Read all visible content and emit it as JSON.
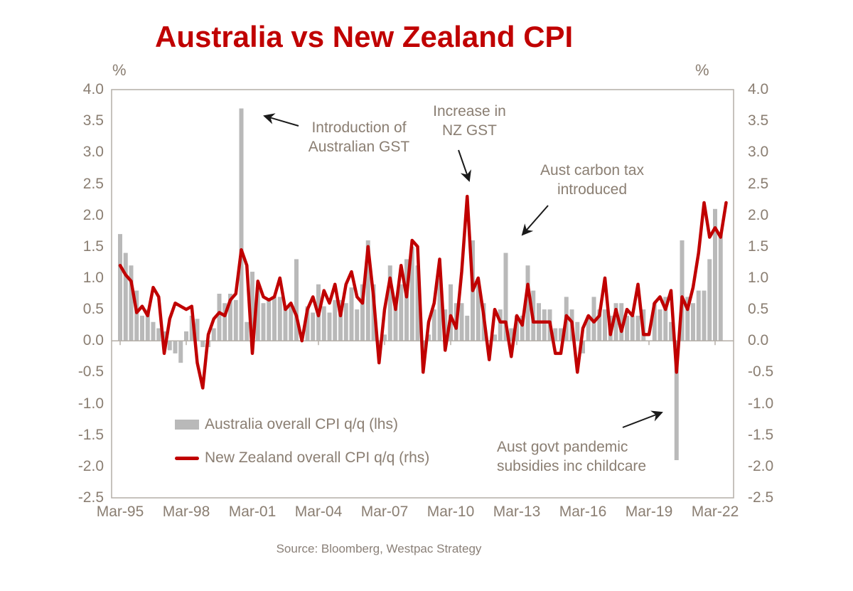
{
  "title": "Australia vs New Zealand CPI",
  "axis": {
    "left_unit": "%",
    "right_unit": "%",
    "y_ticks": [
      "4.0",
      "3.5",
      "3.0",
      "2.5",
      "2.0",
      "1.5",
      "1.0",
      "0.5",
      "0.0",
      "-0.5",
      "-1.0",
      "-1.5",
      "-2.0",
      "-2.5"
    ],
    "x_ticks": [
      "Mar-95",
      "Mar-98",
      "Mar-01",
      "Mar-04",
      "Mar-07",
      "Mar-10",
      "Mar-13",
      "Mar-16",
      "Mar-19",
      "Mar-22"
    ]
  },
  "legend": [
    {
      "label": "Australia overall CPI q/q (lhs)",
      "swatch": "bar",
      "color": "#b9b9b9"
    },
    {
      "label": "New Zealand overall CPI q/q (rhs)",
      "swatch": "line",
      "color": "#c00000"
    }
  ],
  "annotations": [
    {
      "id": "aus-gst",
      "text": "Introduction of Australian GST",
      "lines": [
        "Introduction of",
        "Australian GST"
      ]
    },
    {
      "id": "nz-gst",
      "text": "Increase in NZ GST",
      "lines": [
        "Increase in",
        "NZ GST"
      ]
    },
    {
      "id": "carbon-tax",
      "text": "Aust carbon tax introduced",
      "lines": [
        "Aust carbon tax",
        "introduced"
      ]
    },
    {
      "id": "pandemic",
      "text": "Aust govt pandemic subsidies inc childcare",
      "lines": [
        "Aust govt pandemic",
        "subsidies inc childcare"
      ]
    }
  ],
  "source": "Source: Bloomberg, Westpac Strategy",
  "chart_data": {
    "type": "bar+line combo",
    "title": "Australia vs New Zealand CPI",
    "start_quarter": "Mar-95",
    "frequency": "quarterly",
    "ylim": [
      -2.5,
      4.0
    ],
    "y_tick_step": 0.5,
    "grid": "none",
    "x_tick_labels": [
      "Mar-95",
      "Mar-98",
      "Mar-01",
      "Mar-04",
      "Mar-07",
      "Mar-10",
      "Mar-13",
      "Mar-16",
      "Mar-19",
      "Mar-22"
    ],
    "x_tick_every_n_quarters": 12,
    "legend_position": "inside lower-left",
    "series": [
      {
        "name": "Australia overall CPI q/q (lhs)",
        "type": "bar",
        "axis": "lhs",
        "color": "#b9b9b9",
        "values": [
          1.7,
          1.4,
          1.2,
          0.8,
          0.4,
          0.5,
          0.3,
          0.2,
          0.15,
          -0.15,
          -0.2,
          -0.35,
          0.15,
          0.4,
          0.35,
          -0.1,
          -0.1,
          0.2,
          0.75,
          0.6,
          0.75,
          0.65,
          3.7,
          0.3,
          1.1,
          0.85,
          0.6,
          0.65,
          0.7,
          0.7,
          0.55,
          0.55,
          1.3,
          0.0,
          0.55,
          0.45,
          0.9,
          0.55,
          0.45,
          0.65,
          0.65,
          0.6,
          0.85,
          0.5,
          0.9,
          1.6,
          0.9,
          -0.1,
          0.1,
          1.2,
          0.7,
          0.9,
          1.3,
          1.5,
          1.2,
          -0.3,
          0.1,
          0.5,
          1.0,
          0.5,
          0.9,
          0.6,
          0.6,
          0.4,
          1.6,
          0.9,
          0.6,
          0.0,
          0.1,
          0.5,
          1.4,
          0.2,
          0.4,
          0.4,
          1.2,
          0.8,
          0.6,
          0.5,
          0.5,
          0.2,
          0.2,
          0.7,
          0.5,
          0.3,
          -0.2,
          0.4,
          0.7,
          0.5,
          0.5,
          0.4,
          0.6,
          0.6,
          0.4,
          0.4,
          0.4,
          0.5,
          0.0,
          0.6,
          0.5,
          0.7,
          0.3,
          -1.9,
          1.6,
          0.7,
          0.6,
          0.8,
          0.8,
          1.3,
          2.1,
          1.7,
          null
        ]
      },
      {
        "name": "New Zealand overall CPI q/q (rhs)",
        "type": "line",
        "axis": "rhs",
        "color": "#c00000",
        "values": [
          1.2,
          1.05,
          0.95,
          0.45,
          0.55,
          0.4,
          0.85,
          0.7,
          -0.2,
          0.35,
          0.6,
          0.55,
          0.5,
          0.55,
          -0.35,
          -0.75,
          0.1,
          0.35,
          0.45,
          0.4,
          0.65,
          0.75,
          1.45,
          1.2,
          -0.2,
          0.95,
          0.7,
          0.65,
          0.7,
          1.0,
          0.5,
          0.6,
          0.4,
          0.0,
          0.5,
          0.7,
          0.4,
          0.8,
          0.6,
          0.9,
          0.4,
          0.9,
          1.1,
          0.7,
          0.6,
          1.5,
          0.7,
          -0.35,
          0.5,
          1.0,
          0.5,
          1.2,
          0.7,
          1.6,
          1.5,
          -0.5,
          0.3,
          0.6,
          1.3,
          -0.15,
          0.4,
          0.2,
          1.1,
          2.3,
          0.8,
          1.0,
          0.4,
          -0.3,
          0.5,
          0.3,
          0.3,
          -0.25,
          0.4,
          0.25,
          0.9,
          0.3,
          0.3,
          0.3,
          0.3,
          -0.2,
          -0.2,
          0.4,
          0.3,
          -0.5,
          0.2,
          0.4,
          0.3,
          0.4,
          1.0,
          0.1,
          0.5,
          0.15,
          0.5,
          0.4,
          0.9,
          0.1,
          0.1,
          0.6,
          0.7,
          0.5,
          0.8,
          -0.5,
          0.7,
          0.5,
          0.85,
          1.4,
          2.2,
          1.65,
          1.8,
          1.65,
          2.2
        ]
      }
    ],
    "event_annotations": [
      {
        "label": "Introduction of Australian GST",
        "points_to_quarter": "Sep-00",
        "series": "Australia",
        "value": 3.7
      },
      {
        "label": "Increase in NZ GST",
        "points_to_quarter": "Dec-10",
        "series": "New Zealand",
        "value": 2.3
      },
      {
        "label": "Aust carbon tax introduced",
        "points_to_quarter": "Sep-12",
        "series": "Australia",
        "value": 1.4
      },
      {
        "label": "Aust govt pandemic subsidies inc childcare",
        "points_to_quarter": "Jun-20",
        "series": "Australia",
        "value": -1.9
      }
    ]
  }
}
